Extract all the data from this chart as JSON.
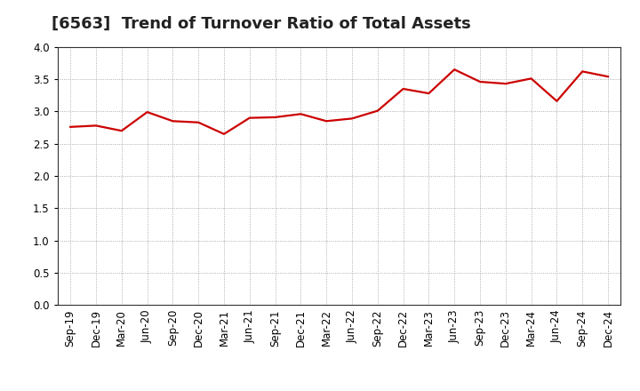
{
  "title": "[6563]  Trend of Turnover Ratio of Total Assets",
  "labels": [
    "Sep-19",
    "Dec-19",
    "Mar-20",
    "Jun-20",
    "Sep-20",
    "Dec-20",
    "Mar-21",
    "Jun-21",
    "Sep-21",
    "Dec-21",
    "Mar-22",
    "Jun-22",
    "Sep-22",
    "Dec-22",
    "Mar-23",
    "Jun-23",
    "Sep-23",
    "Dec-23",
    "Mar-24",
    "Jun-24",
    "Sep-24",
    "Dec-24"
  ],
  "values": [
    2.76,
    2.78,
    2.7,
    2.99,
    2.85,
    2.83,
    2.65,
    2.9,
    2.91,
    2.96,
    2.85,
    2.89,
    3.01,
    3.35,
    3.28,
    3.65,
    3.46,
    3.43,
    3.51,
    3.16,
    3.62,
    3.54
  ],
  "line_color": "#cc0000",
  "background_color": "#ffffff",
  "grid_color": "#999999",
  "ylim": [
    0.0,
    4.0
  ],
  "yticks": [
    0.0,
    0.5,
    1.0,
    1.5,
    2.0,
    2.5,
    3.0,
    3.5,
    4.0
  ],
  "title_fontsize": 13,
  "tick_fontsize": 8.5,
  "line_width": 1.6,
  "spine_color": "#333333"
}
